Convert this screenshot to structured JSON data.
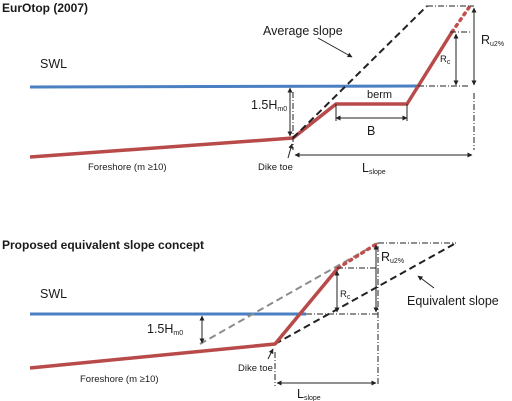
{
  "panels": [
    {
      "title": "EurOtop (2007)",
      "swl": "SWL",
      "average_slope": "Average slope",
      "hm0_main": "1.5H",
      "hm0_sub": "m0",
      "berm": "berm",
      "b_label": "B",
      "rc_main": "R",
      "rc_sub": "c",
      "ru_main": "R",
      "ru_sub": "u2%",
      "foreshore": "Foreshore (m ≥10)",
      "dike_toe": "Dike toe",
      "lslope_main": "L",
      "lslope_sub": "slope"
    },
    {
      "title": "Proposed equivalent slope concept",
      "swl": "SWL",
      "equivalent_slope": "Equivalent slope",
      "hm0_main": "1.5H",
      "hm0_sub": "m0",
      "rc_main": "R",
      "rc_sub": "c",
      "ru_main": "R",
      "ru_sub": "u2%",
      "foreshore": "Foreshore (m ≥10)",
      "dike_toe": "Dike toe",
      "lslope_main": "L",
      "lslope_sub": "slope"
    }
  ],
  "colors": {
    "water_line": "#4a7fc1",
    "profile": "#b94a4a",
    "profile_dotted": "#c0504d",
    "guide": "#222222",
    "equivalent_grey": "#8c8c8c"
  }
}
